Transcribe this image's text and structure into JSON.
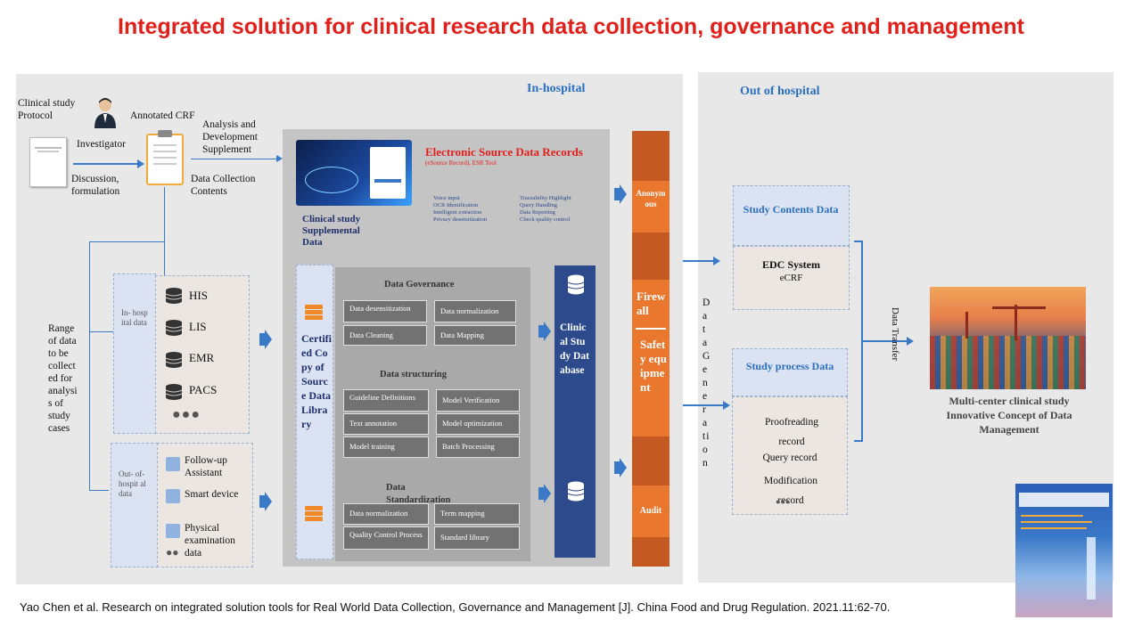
{
  "title": "Integrated solution for clinical research data collection, governance and management",
  "in_hospital": {
    "title": "In-hospital",
    "protocol": "Clinical study Protocol",
    "investigator": "Investigator",
    "discussion": "Discussion, formulation",
    "annotated_crf": "Annotated CRF",
    "analysis_supplement": "Analysis and Development Supplement",
    "data_collection_contents": "Data Collection Contents",
    "range_of_data": "Range of data to be collect ed for analysi s of study cases",
    "in_hospital_data": "In- hosp ital data",
    "out_hospital_data": "Out- of- hospit al data",
    "sources": [
      "HIS",
      "LIS",
      "EMR",
      "PACS"
    ],
    "out_sources": [
      "Follow-up Assistant",
      "Smart device",
      "Physical examination data"
    ],
    "esr_title": "Electronic Source Data Records",
    "esr_subtitle": "(eSource Record), ESR Tool",
    "esr_features_left": [
      "Voice input",
      "OCR Identification",
      "Intelligent extraction",
      "Privacy desensitization"
    ],
    "esr_features_right": [
      "Traceability Highlight",
      "Query Handling",
      "Data Reporting",
      "Check quality control"
    ],
    "supplemental": "Clinical study Supplemental Data",
    "certified_copy": "Certified Copy of Source Data Library",
    "governance_title": "Data Governance",
    "governance": [
      "Data desensitization",
      "Data normalization",
      "Data Cleaning",
      "Data Mapping"
    ],
    "structuring_title": "Data structuring",
    "structuring": [
      "Guideline Definitions",
      "Model Verification",
      "Text annotation",
      "Model optimization",
      "Model training",
      "Batch Processing"
    ],
    "standardization_title": "Data Standardization",
    "standardization": [
      "Data normalization",
      "Term mapping",
      "Quality Control Process",
      "Standard library"
    ],
    "clinical_db": "Clinical Study Database"
  },
  "firewall": {
    "anonymous": "Anonymous",
    "firewall": "Firewall",
    "safety": "Safety equipment",
    "audit": "Audit",
    "data_generation": "DataGeneration"
  },
  "out_hospital": {
    "title": "Out of hospital",
    "study_contents": "Study Contents Data",
    "edc": "EDC System",
    "ecrf": "eCRF",
    "study_process": "Study process Data",
    "process_items": [
      "Proofreading record",
      "Query record",
      "Modification record"
    ],
    "data_transfer": "Data Transfer",
    "multi_center": "Multi-center clinical study Innovative Concept of Data Management"
  },
  "citation": "Yao Chen et al. Research on integrated solution tools for Real World Data Collection, Governance and Management [J]. China Food and Drug Regulation. 2021.11:62-70."
}
